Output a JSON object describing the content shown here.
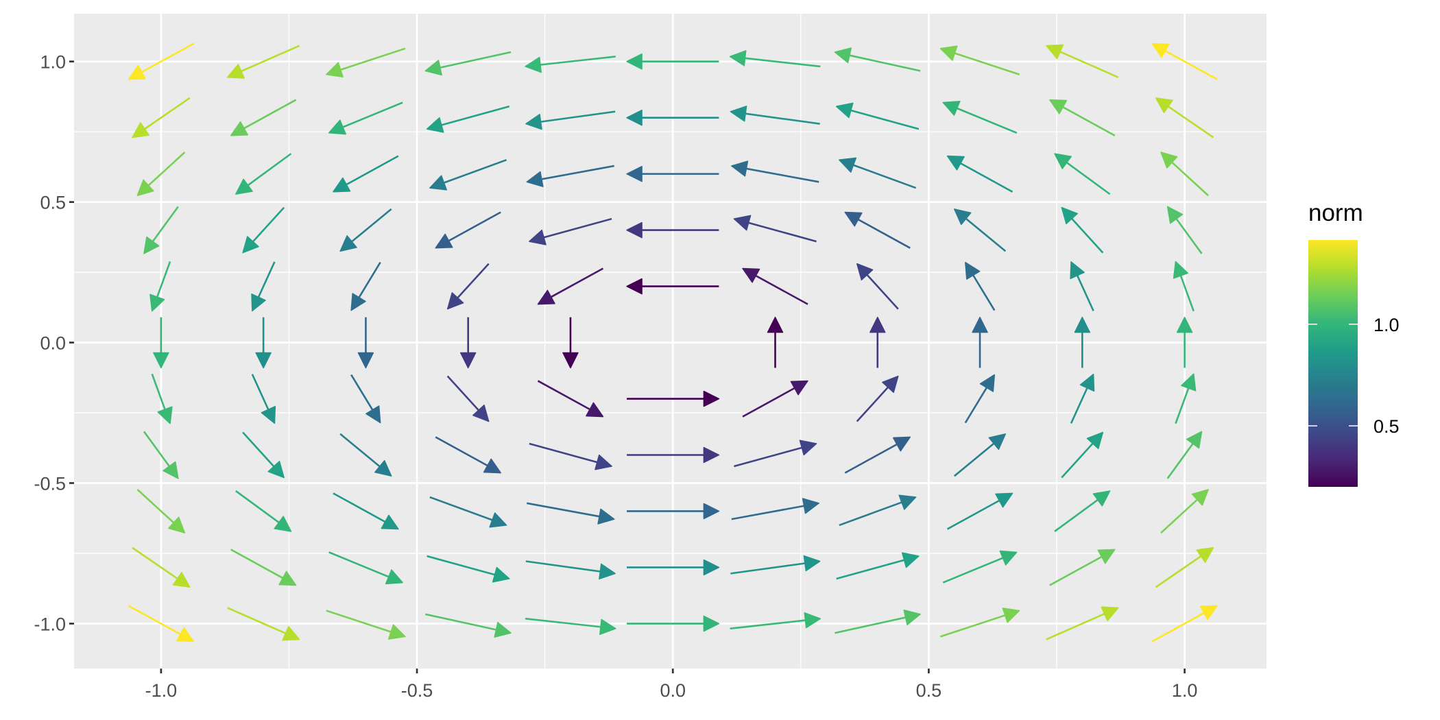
{
  "chart_data": {
    "type": "quiver",
    "field": "(-y, x)",
    "grid_x": [
      -1.0,
      -0.8,
      -0.6,
      -0.4,
      -0.2,
      0.0,
      0.2,
      0.4,
      0.6,
      0.8,
      1.0
    ],
    "grid_y": [
      -1.0,
      -0.8,
      -0.6,
      -0.4,
      -0.2,
      0.0,
      0.2,
      0.4,
      0.6,
      0.8,
      1.0
    ],
    "arrow_length": 0.18,
    "color_by": "norm",
    "xlim": [
      -1.17,
      1.16
    ],
    "ylim": [
      -1.16,
      1.17
    ],
    "x_ticks": [
      -1.0,
      -0.5,
      0.0,
      0.5,
      1.0
    ],
    "y_ticks": [
      -1.0,
      -0.5,
      0.0,
      0.5,
      1.0
    ],
    "x_tick_labels": [
      "-1.0",
      "-0.5",
      "0.0",
      "0.5",
      "1.0"
    ],
    "y_tick_labels": [
      "-1.0",
      "-0.5",
      "0.0",
      "0.5",
      "1.0"
    ],
    "xlabel": "",
    "ylabel": "",
    "grid": true,
    "panel_background": "#ebebeb",
    "legend": {
      "title": "norm",
      "position": "right",
      "range": [
        0.2,
        1.414
      ],
      "ticks": [
        0.5,
        1.0
      ],
      "tick_labels": [
        "0.5",
        "1.0"
      ],
      "palette": "viridis",
      "colors": [
        "#440154",
        "#482878",
        "#3e4989",
        "#31688e",
        "#26828e",
        "#1f9e89",
        "#35b779",
        "#6ece58",
        "#b5de2b",
        "#fde725"
      ]
    }
  }
}
